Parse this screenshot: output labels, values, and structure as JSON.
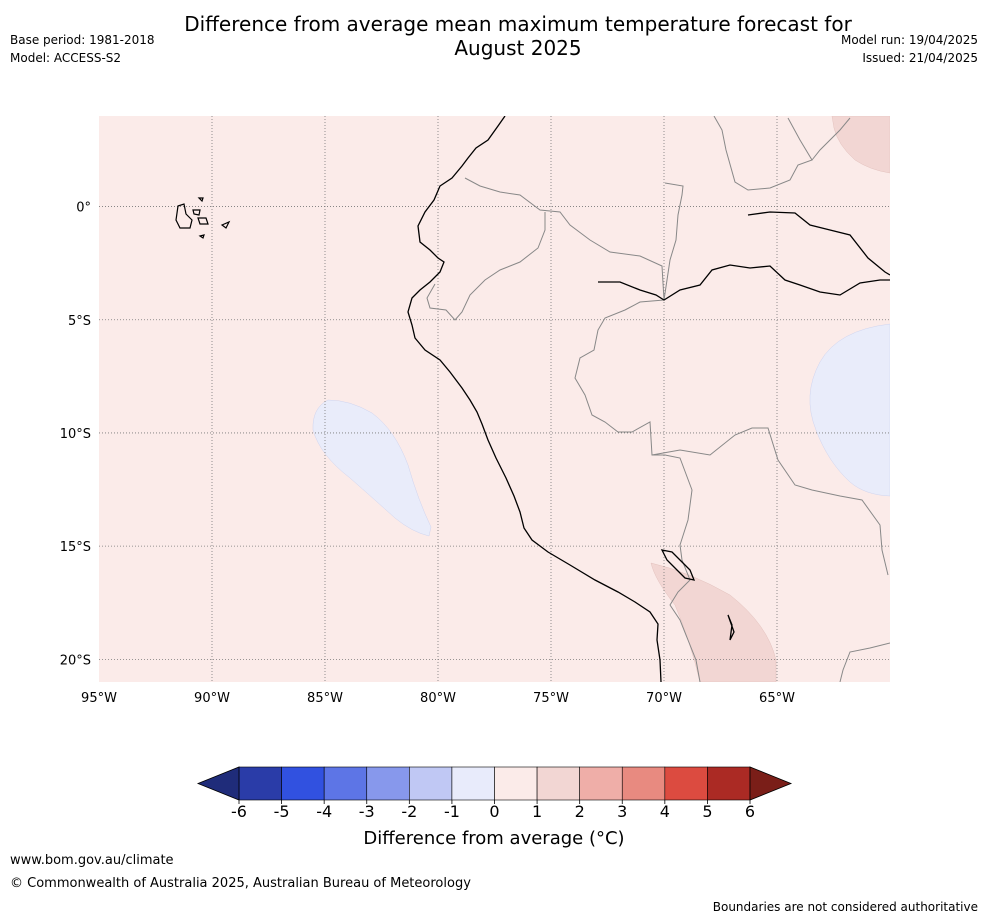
{
  "title_line1": "Difference from average mean maximum temperature forecast for",
  "title_line2": "August 2025",
  "meta": {
    "base_period": "Base period: 1981-2018",
    "model": "Model: ACCESS-S2",
    "model_run": "Model run: 19/04/2025",
    "issued": "Issued: 21/04/2025"
  },
  "map": {
    "lon_range": [
      -95,
      -60
    ],
    "lat_range": [
      -21,
      4
    ],
    "lon_gridlines": [
      -90,
      -85,
      -80,
      -75,
      -70,
      -65
    ],
    "lat_gridlines": [
      0,
      -5,
      -10,
      -15,
      -20
    ],
    "lon_labels": [
      "95°W",
      "90°W",
      "85°W",
      "80°W",
      "75°W",
      "70°W",
      "65°W"
    ],
    "lon_label_values": [
      -95,
      -90,
      -85,
      -80,
      -75,
      -70,
      -65
    ],
    "lat_labels": [
      "0°",
      "5°S",
      "10°S",
      "15°S",
      "20°S"
    ],
    "lat_label_values": [
      0,
      -5,
      -10,
      -15,
      -20
    ],
    "background_anomaly": "0 to 1",
    "colors": {
      "ocean_land_base": "#fbebe9",
      "warm_1_2": "#f2d6d3",
      "cool_0_-1": "#e9ecfa",
      "coast": "#000000",
      "border": "#888888",
      "grid": "#777777"
    }
  },
  "colorbar": {
    "ticks": [
      "-6",
      "-5",
      "-4",
      "-3",
      "-2",
      "-1",
      "0",
      "1",
      "2",
      "3",
      "4",
      "5",
      "6"
    ],
    "colors": [
      "#2a3ca8",
      "#3151e0",
      "#5d75e6",
      "#8798ec",
      "#c0c8f4",
      "#e8ebfb",
      "#fbebe9",
      "#f2d6d3",
      "#efaea8",
      "#e88a80",
      "#dc4b40",
      "#ab2a24"
    ],
    "under_color": "#1f2c7a",
    "over_color": "#7a1e18",
    "label": "Difference from average (°C)"
  },
  "footer": {
    "url": "www.bom.gov.au/climate",
    "copyright": "© Commonwealth of Australia 2025, Australian Bureau of Meteorology",
    "note": "Boundaries are not considered authoritative"
  }
}
